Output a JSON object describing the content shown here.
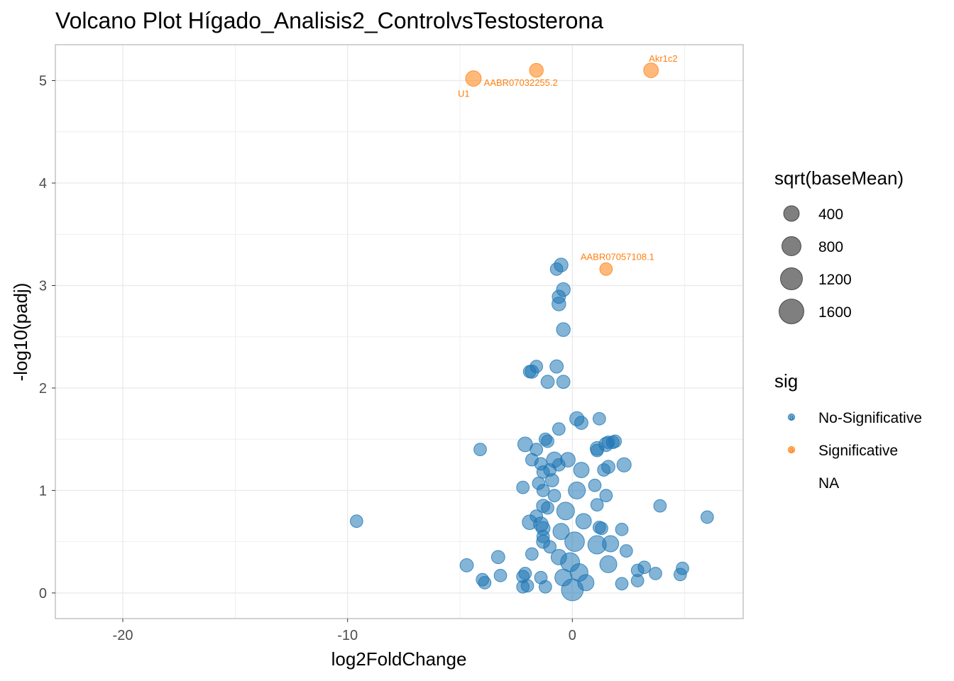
{
  "chart_data": {
    "type": "scatter",
    "title": "Volcano Plot Hígado_Analisis2_ControlvsTestosterona",
    "xlabel": "log2FoldChange",
    "ylabel": "-log10(padj)",
    "xlim": [
      -23,
      7.6
    ],
    "ylim": [
      -0.25,
      5.35
    ],
    "xticks": [
      -20,
      -10,
      0
    ],
    "xticks_minor": [
      -15,
      -5,
      5
    ],
    "yticks": [
      0,
      1,
      2,
      3,
      4,
      5
    ],
    "yticks_minor": [
      0.5,
      1.5,
      2.5,
      3.5,
      4.5
    ],
    "grid": true,
    "legend_position": "right",
    "colors": {
      "no_sig": "#1f77b4",
      "sig": "#ff7f0e",
      "grid": "#ebebeb",
      "panel_border": "#b3b3b3"
    },
    "size_legend": {
      "title": "sqrt(baseMean)",
      "values": [
        "400",
        "800",
        "1200",
        "1600"
      ]
    },
    "color_legend": {
      "title": "sig",
      "entries": [
        "No-Significative",
        "Significative",
        "NA"
      ],
      "key_glyph": "a"
    },
    "series": [
      {
        "name": "Significative",
        "points": [
          {
            "x": -4.4,
            "y": 5.02,
            "size": 700,
            "label": "U1"
          },
          {
            "x": -1.6,
            "y": 5.1,
            "size": 500,
            "label": "AABR07032255.2"
          },
          {
            "x": 3.5,
            "y": 5.1,
            "size": 600,
            "label": "Akr1c2"
          },
          {
            "x": 1.5,
            "y": 3.16,
            "size": 380,
            "label": "AABR07057108.1"
          }
        ]
      },
      {
        "name": "No-Significative",
        "points": [
          {
            "x": -9.6,
            "y": 0.7,
            "size": 380
          },
          {
            "x": 6.0,
            "y": 0.74,
            "size": 380
          },
          {
            "x": 3.9,
            "y": 0.85,
            "size": 380
          },
          {
            "x": 4.9,
            "y": 0.24,
            "size": 380
          },
          {
            "x": 4.8,
            "y": 0.18,
            "size": 380
          },
          {
            "x": 3.7,
            "y": 0.19,
            "size": 380
          },
          {
            "x": 3.2,
            "y": 0.25,
            "size": 380
          },
          {
            "x": 2.9,
            "y": 0.22,
            "size": 380
          },
          {
            "x": 2.9,
            "y": 0.12,
            "size": 380
          },
          {
            "x": 2.2,
            "y": 0.09,
            "size": 380
          },
          {
            "x": 2.4,
            "y": 0.41,
            "size": 380
          },
          {
            "x": 2.2,
            "y": 0.62,
            "size": 380
          },
          {
            "x": 2.3,
            "y": 1.25,
            "size": 550
          },
          {
            "x": 1.9,
            "y": 1.48,
            "size": 400
          },
          {
            "x": 1.8,
            "y": 1.47,
            "size": 400
          },
          {
            "x": 1.6,
            "y": 1.47,
            "size": 380
          },
          {
            "x": 1.5,
            "y": 1.45,
            "size": 550
          },
          {
            "x": 1.2,
            "y": 1.7,
            "size": 380
          },
          {
            "x": 1.1,
            "y": 1.41,
            "size": 500
          },
          {
            "x": 1.1,
            "y": 1.39,
            "size": 380
          },
          {
            "x": 1.6,
            "y": 1.23,
            "size": 450
          },
          {
            "x": 1.4,
            "y": 1.2,
            "size": 380
          },
          {
            "x": 1.0,
            "y": 1.05,
            "size": 380
          },
          {
            "x": 1.5,
            "y": 0.95,
            "size": 380
          },
          {
            "x": 1.1,
            "y": 0.86,
            "size": 380
          },
          {
            "x": 1.2,
            "y": 0.64,
            "size": 380
          },
          {
            "x": 1.3,
            "y": 0.63,
            "size": 380
          },
          {
            "x": 1.1,
            "y": 0.47,
            "size": 1100
          },
          {
            "x": 1.7,
            "y": 0.48,
            "size": 800
          },
          {
            "x": 1.6,
            "y": 0.28,
            "size": 900
          },
          {
            "x": -0.5,
            "y": 3.2,
            "size": 500
          },
          {
            "x": -0.7,
            "y": 3.16,
            "size": 380
          },
          {
            "x": -0.4,
            "y": 2.96,
            "size": 500
          },
          {
            "x": -0.6,
            "y": 2.89,
            "size": 450
          },
          {
            "x": -0.6,
            "y": 2.82,
            "size": 500
          },
          {
            "x": -0.4,
            "y": 2.57,
            "size": 500
          },
          {
            "x": -1.8,
            "y": 2.16,
            "size": 450
          },
          {
            "x": -1.9,
            "y": 2.16,
            "size": 380
          },
          {
            "x": -1.6,
            "y": 2.21,
            "size": 380
          },
          {
            "x": -0.7,
            "y": 2.21,
            "size": 450
          },
          {
            "x": -1.1,
            "y": 2.06,
            "size": 450
          },
          {
            "x": -0.4,
            "y": 2.06,
            "size": 450
          },
          {
            "x": 0.2,
            "y": 1.7,
            "size": 550
          },
          {
            "x": 0.4,
            "y": 1.66,
            "size": 450
          },
          {
            "x": -0.6,
            "y": 1.6,
            "size": 380
          },
          {
            "x": -1.2,
            "y": 1.5,
            "size": 380
          },
          {
            "x": -1.1,
            "y": 1.48,
            "size": 380
          },
          {
            "x": -2.1,
            "y": 1.45,
            "size": 600
          },
          {
            "x": -1.6,
            "y": 1.4,
            "size": 380
          },
          {
            "x": -4.1,
            "y": 1.4,
            "size": 380
          },
          {
            "x": -1.8,
            "y": 1.3,
            "size": 380
          },
          {
            "x": -1.4,
            "y": 1.26,
            "size": 380
          },
          {
            "x": -1.3,
            "y": 1.18,
            "size": 380
          },
          {
            "x": -1.0,
            "y": 1.2,
            "size": 380
          },
          {
            "x": -0.8,
            "y": 1.3,
            "size": 700
          },
          {
            "x": -0.6,
            "y": 1.25,
            "size": 380
          },
          {
            "x": -0.9,
            "y": 1.1,
            "size": 450
          },
          {
            "x": -1.5,
            "y": 1.07,
            "size": 380
          },
          {
            "x": -2.2,
            "y": 1.03,
            "size": 380
          },
          {
            "x": -1.3,
            "y": 1.0,
            "size": 380
          },
          {
            "x": -0.8,
            "y": 0.95,
            "size": 380
          },
          {
            "x": -1.3,
            "y": 0.85,
            "size": 450
          },
          {
            "x": -1.1,
            "y": 0.83,
            "size": 380
          },
          {
            "x": -1.6,
            "y": 0.75,
            "size": 380
          },
          {
            "x": -1.9,
            "y": 0.69,
            "size": 600
          },
          {
            "x": -1.4,
            "y": 0.67,
            "size": 600
          },
          {
            "x": -1.3,
            "y": 0.63,
            "size": 500
          },
          {
            "x": -1.3,
            "y": 0.55,
            "size": 380
          },
          {
            "x": -1.3,
            "y": 0.5,
            "size": 450
          },
          {
            "x": -1.0,
            "y": 0.45,
            "size": 380
          },
          {
            "x": -1.8,
            "y": 0.38,
            "size": 380
          },
          {
            "x": -3.3,
            "y": 0.35,
            "size": 450
          },
          {
            "x": -4.7,
            "y": 0.27,
            "size": 450
          },
          {
            "x": -2.1,
            "y": 0.19,
            "size": 380
          },
          {
            "x": -2.2,
            "y": 0.16,
            "size": 380
          },
          {
            "x": -3.2,
            "y": 0.17,
            "size": 380
          },
          {
            "x": -4.0,
            "y": 0.13,
            "size": 380
          },
          {
            "x": -3.9,
            "y": 0.1,
            "size": 380
          },
          {
            "x": -2.2,
            "y": 0.06,
            "size": 380
          },
          {
            "x": -2.0,
            "y": 0.07,
            "size": 380
          },
          {
            "x": -1.2,
            "y": 0.06,
            "size": 380
          },
          {
            "x": -1.4,
            "y": 0.15,
            "size": 380
          },
          {
            "x": 0.0,
            "y": 0.03,
            "size": 1700
          },
          {
            "x": 0.1,
            "y": 0.5,
            "size": 1300
          },
          {
            "x": -0.3,
            "y": 0.8,
            "size": 1000
          },
          {
            "x": 0.2,
            "y": 1.0,
            "size": 900
          },
          {
            "x": -0.1,
            "y": 0.3,
            "size": 1200
          },
          {
            "x": 0.3,
            "y": 0.2,
            "size": 1000
          },
          {
            "x": -0.4,
            "y": 0.15,
            "size": 900
          },
          {
            "x": 0.5,
            "y": 0.7,
            "size": 700
          },
          {
            "x": -0.5,
            "y": 0.6,
            "size": 800
          },
          {
            "x": 0.4,
            "y": 1.2,
            "size": 700
          },
          {
            "x": -0.2,
            "y": 1.3,
            "size": 600
          },
          {
            "x": 0.6,
            "y": 0.1,
            "size": 800
          },
          {
            "x": -0.6,
            "y": 0.35,
            "size": 700
          }
        ]
      }
    ]
  }
}
